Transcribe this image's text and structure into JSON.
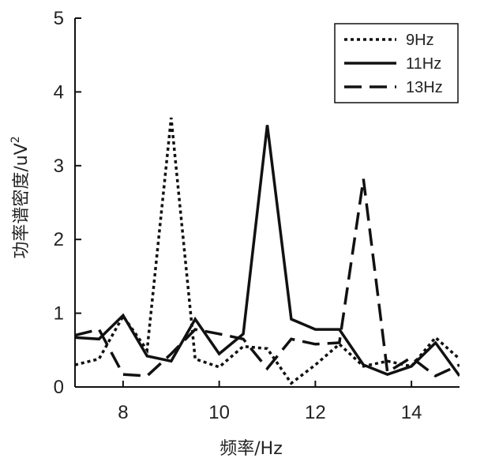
{
  "chart_data": {
    "type": "line",
    "xlabel": "频率/Hz",
    "ylabel": "功率谱密度/uV",
    "ylabel_sup": "2",
    "xlim": [
      7,
      15
    ],
    "ylim": [
      0,
      5
    ],
    "xticks": [
      8,
      10,
      12,
      14
    ],
    "yticks": [
      0,
      1,
      2,
      3,
      4,
      5
    ],
    "legend_position": "top-right",
    "grid": false,
    "series": [
      {
        "name": "9Hz",
        "style": "dotted",
        "x": [
          7,
          7.5,
          8,
          8.5,
          9,
          9.5,
          10,
          10.5,
          11,
          11.5,
          12,
          12.5,
          13,
          13.5,
          14,
          14.5,
          15
        ],
        "y": [
          0.3,
          0.38,
          0.96,
          0.5,
          3.65,
          0.38,
          0.27,
          0.55,
          0.52,
          0.05,
          0.3,
          0.58,
          0.28,
          0.35,
          0.28,
          0.67,
          0.38
        ]
      },
      {
        "name": "11Hz",
        "style": "solid",
        "x": [
          7,
          7.5,
          8,
          8.5,
          9,
          9.5,
          10,
          10.5,
          11,
          11.5,
          12,
          12.5,
          13,
          13.5,
          14,
          14.5,
          15
        ],
        "y": [
          0.67,
          0.65,
          0.97,
          0.42,
          0.35,
          0.92,
          0.45,
          0.72,
          3.55,
          0.92,
          0.78,
          0.78,
          0.3,
          0.17,
          0.28,
          0.6,
          0.15
        ]
      },
      {
        "name": "13Hz",
        "style": "dashed",
        "x": [
          7,
          7.5,
          8,
          8.5,
          9,
          9.5,
          10,
          10.5,
          11,
          11.5,
          12,
          12.5,
          13,
          13.5,
          14,
          14.5,
          15
        ],
        "y": [
          0.7,
          0.78,
          0.17,
          0.15,
          0.45,
          0.78,
          0.72,
          0.65,
          0.25,
          0.65,
          0.58,
          0.6,
          2.82,
          0.2,
          0.4,
          0.15,
          0.3
        ]
      }
    ]
  }
}
